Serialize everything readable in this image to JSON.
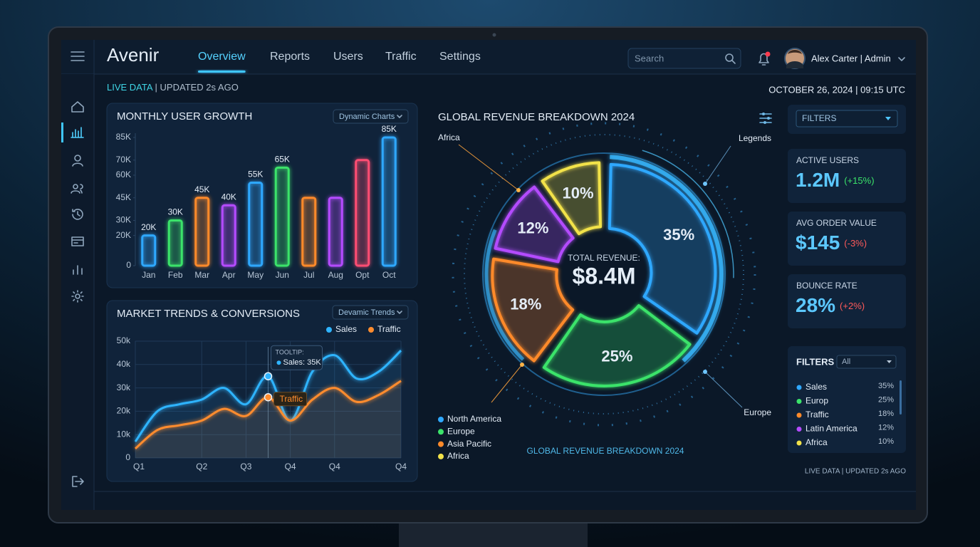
{
  "header": {
    "brand": "Avenir",
    "nav": [
      "Overview",
      "Reports",
      "Users",
      "Traffic",
      "Settings"
    ],
    "active_nav": 0,
    "search": "Search",
    "user": "Alex Carter | Admin"
  },
  "status": {
    "live": "LIVE DATA",
    "updated": "| UPDATED 2s AGO",
    "datetime": "OCTOBER 26, 2024 | 09:15 UTC"
  },
  "chart_data": [
    {
      "type": "bar",
      "title": "MONTHLY USER GROWTH",
      "control": "Dynamic Charts",
      "categories": [
        "Jan",
        "Feb",
        "Mar",
        "Apr",
        "May",
        "Jun",
        "Jul",
        "Aug",
        "Opt",
        "Oct"
      ],
      "values": [
        20000,
        30000,
        45000,
        40000,
        55000,
        65000,
        45000,
        45000,
        70000,
        85000
      ],
      "value_labels": [
        "20K",
        "30K",
        "45K",
        "40K",
        "55K",
        "65K",
        null,
        null,
        null,
        "85K"
      ],
      "colors": [
        "#2fa8ff",
        "#3be36a",
        "#ff8a2a",
        "#b44cff",
        "#2fa8ff",
        "#3be36a",
        "#ff8a2a",
        "#b44cff",
        "#ff4d73",
        "#2fa8ff"
      ],
      "ylim": [
        0,
        85000
      ],
      "yticks": [
        0,
        {
          "value": 20000,
          "label": "20K"
        },
        {
          "value": 30000,
          "label": "30K"
        },
        {
          "value": 45000,
          "label": "45K"
        },
        {
          "value": 60000,
          "label": "60K"
        },
        {
          "value": 70000,
          "label": "70K"
        },
        {
          "value": 85000,
          "label": "85K"
        }
      ]
    },
    {
      "type": "line",
      "title": "MARKET TRENDS & CONVERSIONS",
      "control": "Devamic Trends",
      "x": [
        0,
        1,
        2,
        3,
        4,
        5,
        6,
        7,
        8,
        9,
        10,
        11,
        12
      ],
      "xlim": [
        0,
        12
      ],
      "xticks": [
        {
          "value": 0,
          "label": "Q1"
        },
        {
          "value": 3,
          "label": "Q2"
        },
        {
          "value": 5,
          "label": "Q3"
        },
        {
          "value": 7,
          "label": "Q4"
        },
        {
          "value": 9,
          "label": "Q4"
        },
        {
          "value": 12,
          "label": "Q4"
        }
      ],
      "ylim": [
        0,
        50000
      ],
      "yticks": [
        0,
        {
          "value": 10000,
          "label": "10k"
        },
        {
          "value": 20000,
          "label": "20k"
        },
        {
          "value": 30000,
          "label": "30k"
        },
        {
          "value": 40000,
          "label": "40k"
        },
        {
          "value": 50000,
          "label": "50k"
        }
      ],
      "grid": true,
      "series": [
        {
          "name": "Sales",
          "color": "#2fb4ff",
          "values": [
            7000,
            20000,
            23000,
            25000,
            30000,
            23000,
            35000,
            16000,
            37000,
            44000,
            34000,
            37000,
            46000
          ]
        },
        {
          "name": "Traffic",
          "color": "#ff8c2e",
          "values": [
            4000,
            12000,
            14000,
            16000,
            21000,
            18000,
            26000,
            16000,
            25000,
            30000,
            24000,
            27000,
            33000
          ]
        }
      ],
      "tooltip": {
        "title": "TOOLTIP:",
        "text": "Sales: 35K"
      },
      "annotation": "Traffic"
    },
    {
      "type": "pie",
      "title": "GLOBAL REVENUE BREAKDOWN 2024",
      "values": [
        35,
        25,
        18,
        12,
        10
      ],
      "value_labels": [
        "35%",
        "25%",
        "18%",
        "12%",
        "10%"
      ],
      "colors": [
        "#2fa8ff",
        "#3be36a",
        "#ff8a2a",
        "#b44cff",
        "#f2e24a"
      ],
      "center_label": "TOTAL REVENUE:",
      "total": "$8.4M",
      "annotations": [
        "Africa",
        "Legends",
        "Europe"
      ],
      "legend": [
        {
          "name": "North America",
          "color": "#2fa8ff"
        },
        {
          "name": "Europe",
          "color": "#3be36a"
        },
        {
          "name": "Asia Pacific",
          "color": "#ff8a2a"
        },
        {
          "name": "Africa",
          "color": "#f2e24a"
        }
      ],
      "caption": "GLOBAL REVENUE BREAKDOWN 2024"
    }
  ],
  "kpis": [
    {
      "label": "ACTIVE USERS",
      "value": "1.2M",
      "change": "(+15%)",
      "change_color": "#3be36a"
    },
    {
      "label": "AVG ORDER VALUE",
      "value": "$145",
      "change": "(-3%)",
      "change_color": "#ff5a5a"
    },
    {
      "label": "BOUNCE RATE",
      "value": "28%",
      "change": "(+2%)",
      "change_color": "#ff5a5a"
    }
  ],
  "filters": {
    "dropdown": "FILTERS",
    "title": "FILTERS",
    "select": "All",
    "items": [
      {
        "name": "Sales",
        "value": "35%",
        "color": "#2fa8ff"
      },
      {
        "name": "Europ",
        "value": "25%",
        "color": "#3be36a"
      },
      {
        "name": "Traffic",
        "value": "18%",
        "color": "#ff8a2a"
      },
      {
        "name": "Latin America",
        "value": "12%",
        "color": "#b44cff"
      },
      {
        "name": "Africa",
        "value": "10%",
        "color": "#f2e24a"
      }
    ]
  },
  "footer": "LIVE DATA | UPDATED 2s AGO"
}
